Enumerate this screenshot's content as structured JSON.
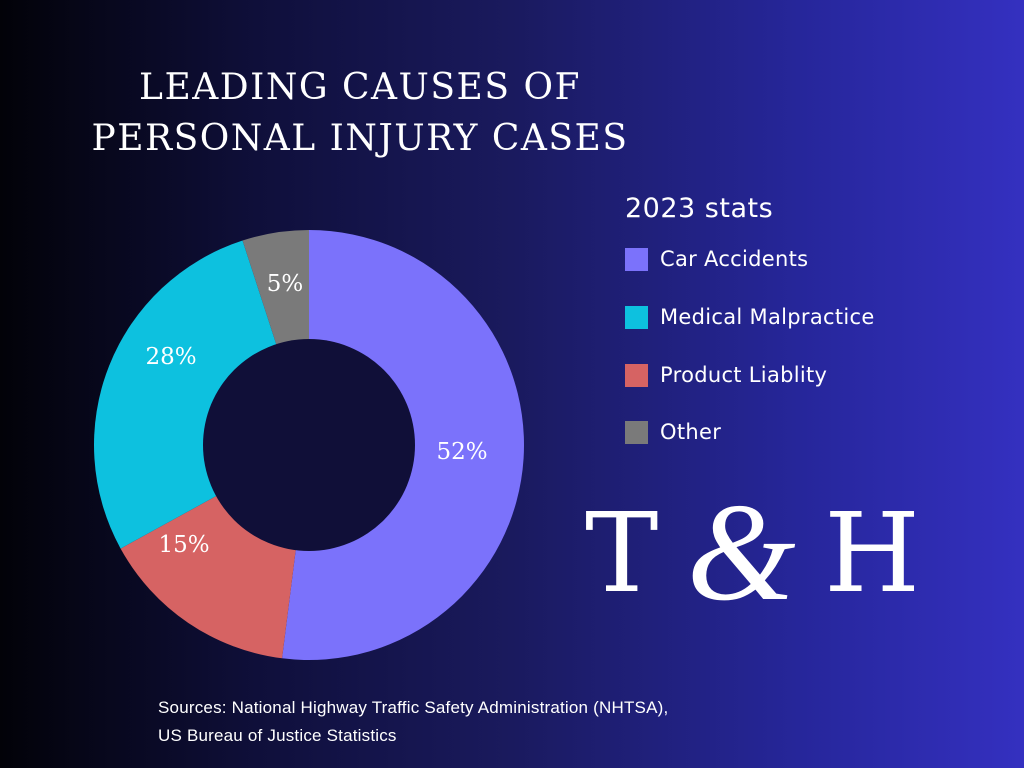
{
  "title": {
    "line1": "LEADING CAUSES OF",
    "line2": "PERSONAL INJURY CASES"
  },
  "legend": {
    "title": "2023 stats",
    "items": [
      {
        "label": "Car Accidents",
        "color": "#7b72fb"
      },
      {
        "label": "Medical Malpractice",
        "color": "#0dc1df"
      },
      {
        "label": "Product Liablity",
        "color": "#d66363"
      },
      {
        "label": "Other",
        "color": "#7a7a7a"
      }
    ]
  },
  "slice_labels": {
    "car_accidents": "52%",
    "medical_malpractice": "28%",
    "product_liability": "15%",
    "other": "5%"
  },
  "logo": {
    "left": "T",
    "amp": "&",
    "right": "H"
  },
  "sources": {
    "line1": "Sources: National Highway Traffic Safety Administration (NHTSA),",
    "line2": "US Bureau of Justice Statistics"
  },
  "colors": {
    "background_left": "#020208",
    "background_right": "#3430c0",
    "donut_hole": "#100f38"
  },
  "chart_data": {
    "type": "pie",
    "subtype": "donut",
    "title": "LEADING CAUSES OF PERSONAL INJURY CASES",
    "subtitle": "2023 stats",
    "categories": [
      "Car Accidents",
      "Medical Malpractice",
      "Product Liablity",
      "Other"
    ],
    "values": [
      52,
      15,
      28,
      5
    ],
    "values_by_category": {
      "Car Accidents": 52,
      "Medical Malpractice": 28,
      "Product Liablity": 15,
      "Other": 5
    },
    "colors": [
      "#7b72fb",
      "#d66363",
      "#0dc1df",
      "#7a7a7a"
    ],
    "slice_order_clockwise_from_top": [
      "Car Accidents",
      "Product Liablity",
      "Medical Malpractice",
      "Other"
    ],
    "units": "%",
    "legend_position": "right",
    "annotations": [
      "Sources: National Highway Traffic Safety Administration (NHTSA), US Bureau of Justice Statistics"
    ]
  }
}
